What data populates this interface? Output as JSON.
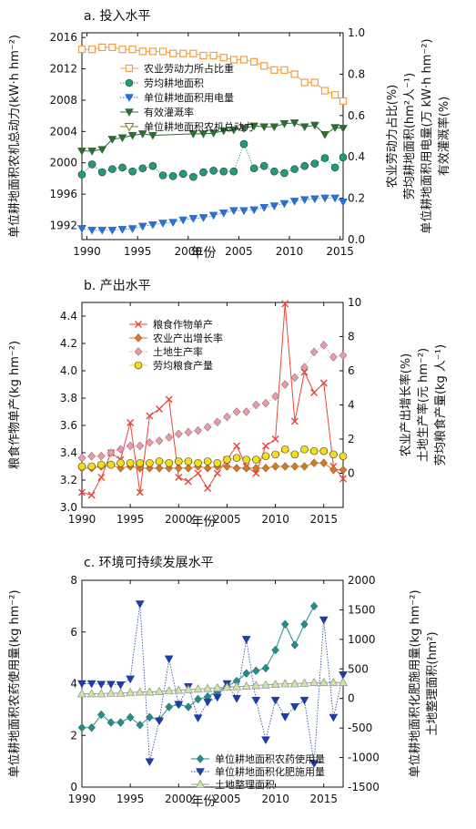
{
  "chart_data": [
    {
      "id": "a",
      "type": "line",
      "title": "a. 投入水平",
      "xlabel": "年份",
      "ylabel_left": "单位耕地面积农机总动力(kW·h hm⁻²)",
      "ylabel_right": [
        "农业劳动力占比(%)",
        "劳均耕地面积(hm²人⁻¹)",
        "单位耕地面积用电量(万 kW·h hm⁻²)",
        "有效灌溉率(%)"
      ],
      "xlim": [
        1989.5,
        2015.3
      ],
      "xticks": [
        1990,
        1995,
        2000,
        2005,
        2010,
        2015
      ],
      "ylim_left": [
        1990.2,
        2016.6
      ],
      "yticks_left": [
        1992,
        1996,
        2000,
        2004,
        2008,
        2012,
        2016
      ],
      "ylim_right": [
        0,
        1.0
      ],
      "yticks_right": [
        "0.0",
        "0.2",
        "0.4",
        "0.6",
        "0.8",
        "1.0"
      ],
      "legend_position": "upper-right",
      "series": [
        {
          "name": "农业劳动力所占比重",
          "axis": "right",
          "color": "#f0a040",
          "marker": "square-open",
          "line": "solid",
          "x": [
            1989.5,
            1990.5,
            1991.5,
            1992.5,
            1993.5,
            1994.5,
            1995.5,
            1996.5,
            1997.5,
            1998.5,
            1999.5,
            2000.5,
            2001.5,
            2002.5,
            2003.5,
            2004.5,
            2005.5,
            2006.5,
            2007.5,
            2008.5,
            2009.5,
            2010.5,
            2011.5,
            2012.5,
            2013.5,
            2014.5,
            2015.3
          ],
          "values": [
            0.92,
            0.92,
            0.93,
            0.93,
            0.92,
            0.92,
            0.91,
            0.91,
            0.91,
            0.9,
            0.9,
            0.9,
            0.89,
            0.89,
            0.88,
            0.87,
            0.87,
            0.86,
            0.84,
            0.82,
            0.82,
            0.8,
            0.76,
            0.76,
            0.72,
            0.7,
            0.67
          ]
        },
        {
          "name": "劳均耕地面积",
          "axis": "left",
          "color": "#1e9c7c",
          "marker": "circle",
          "line": "dotted",
          "x": [
            1989.5,
            1990.5,
            1991.5,
            1992.5,
            1993.5,
            1994.5,
            1995.5,
            1996.5,
            1997.5,
            1998.5,
            1999.5,
            2000.5,
            2001.5,
            2002.5,
            2003.5,
            2004.5,
            2005.5,
            2006.5,
            2007.5,
            2008.5,
            2009.5,
            2010.5,
            2011.5,
            2012.5,
            2013.5,
            2014.5,
            2015.3
          ],
          "values": [
            1998.5,
            1999.8,
            1998.8,
            1999.2,
            1999.4,
            1998.9,
            1999.3,
            1999.6,
            1998.4,
            1998.3,
            1998.6,
            1998.2,
            1998.8,
            1999.0,
            1998.9,
            1998.9,
            2002.4,
            1999.3,
            1999.6,
            1998.9,
            1998.7,
            1999.2,
            1999.6,
            1999.9,
            2000.6,
            1999.4,
            2000.7
          ]
        },
        {
          "name": "单位耕地面积用电量",
          "axis": "left",
          "color": "#2e6fcc",
          "marker": "triangle-down",
          "line": "dotted",
          "x": [
            1989.5,
            1990.5,
            1991.5,
            1992.5,
            1993.5,
            1994.5,
            1995.5,
            1996.5,
            1997.5,
            1998.5,
            1999.5,
            2000.5,
            2001.5,
            2002.5,
            2003.5,
            2004.5,
            2005.5,
            2006.5,
            2007.5,
            2008.5,
            2009.5,
            2010.5,
            2011.5,
            2012.5,
            2013.5,
            2014.5,
            2015.3
          ],
          "values": [
            1991.6,
            1991.4,
            1991.4,
            1991.4,
            1991.5,
            1991.6,
            1991.9,
            1992.1,
            1992.3,
            1992.4,
            1992.7,
            1992.9,
            1993.0,
            1993.3,
            1993.6,
            1993.9,
            1993.9,
            1994.0,
            1994.3,
            1994.5,
            1994.8,
            1995.1,
            1995.3,
            1995.4,
            1995.5,
            1995.5,
            1995.0
          ]
        },
        {
          "name": "有效灌溉率",
          "axis": "left",
          "color": "#2f6b32",
          "marker": "triangle-down",
          "line": "solid",
          "x": [
            1989.5,
            1990.5,
            1991.5,
            1992.5,
            1993.5,
            1994.5,
            1995.5,
            1996.5,
            2000.5,
            2001.5,
            2002.5,
            2003.5,
            2004.5,
            2005.5,
            2006.5,
            2007.5,
            2008.5,
            2009.5,
            2010.5,
            2011.5,
            2012.5,
            2013.5,
            2014.5,
            2015.3
          ],
          "values": [
            2001.5,
            2001.5,
            2001.7,
            2003.0,
            2003.2,
            2003.5,
            2003.7,
            2003.5,
            2003.7,
            2003.7,
            2003.8,
            2004.1,
            2004.2,
            2004.4,
            2004.7,
            2004.6,
            2004.6,
            2005.0,
            2005.1,
            2004.6,
            2004.8,
            2003.6,
            2004.5,
            2004.4
          ]
        },
        {
          "name": "单位耕地面积农机总动力",
          "axis": "left",
          "color": "#8a7a10",
          "marker": "triangle-down-open",
          "line": "solid",
          "x": [],
          "values": []
        }
      ]
    },
    {
      "id": "b",
      "type": "line",
      "title": "b. 产出水平",
      "xlabel": "年份",
      "ylabel_left": "粮食作物单产(kg hm⁻²)",
      "ylabel_right": [
        "农业产出增长率(%)",
        "土地生产率(元 hm⁻²)",
        "劳均粮食产量(kg 人⁻¹)"
      ],
      "xlim": [
        1990,
        2017
      ],
      "xticks": [
        1990,
        1995,
        2000,
        2005,
        2010,
        2015
      ],
      "ylim_left": [
        3.0,
        4.5
      ],
      "yticks_left": [
        "3.0",
        "3.2",
        "3.4",
        "3.6",
        "3.8",
        "4.0",
        "4.2",
        "4.4"
      ],
      "ylim_right": [
        -2,
        10
      ],
      "yticks_right": [
        0,
        2,
        4,
        6,
        8,
        10
      ],
      "legend_position": "upper-left",
      "series": [
        {
          "name": "粮食作物单产",
          "axis": "left",
          "color": "#e8443a",
          "marker": "x",
          "line": "solid",
          "x": [
            1990,
            1991,
            1992,
            1993,
            1994,
            1995,
            1996,
            1997,
            1998,
            1999,
            2000,
            2001,
            2002,
            2003,
            2004,
            2005,
            2006,
            2007,
            2008,
            2009,
            2010,
            2011,
            2012,
            2013,
            2014,
            2015,
            2016,
            2017
          ],
          "values": [
            3.11,
            3.09,
            3.22,
            3.4,
            3.35,
            3.62,
            3.11,
            3.67,
            3.72,
            3.79,
            3.22,
            3.19,
            3.25,
            3.14,
            3.25,
            3.35,
            3.45,
            3.3,
            3.25,
            3.45,
            3.5,
            4.49,
            3.63,
            3.99,
            3.84,
            3.91,
            3.3,
            3.21
          ]
        },
        {
          "name": "农业产出增长率",
          "axis": "right",
          "color": "#d7781f",
          "marker": "diamond",
          "line": "solid",
          "x": [
            1990,
            1991,
            1992,
            1993,
            1994,
            1995,
            1996,
            1997,
            1998,
            1999,
            2000,
            2001,
            2002,
            2003,
            2004,
            2005,
            2006,
            2007,
            2008,
            2009,
            2010,
            2011,
            2012,
            2013,
            2014,
            2015,
            2016,
            2017
          ],
          "values": [
            0.3,
            0.3,
            0.4,
            0.5,
            0.3,
            0.4,
            0.3,
            0.3,
            0.3,
            0.3,
            0.3,
            0.3,
            0.4,
            0.3,
            0.4,
            0.4,
            0.3,
            0.3,
            0.3,
            0.3,
            0.4,
            0.4,
            0.4,
            0.4,
            0.6,
            0.6,
            0.2,
            0.2
          ]
        },
        {
          "name": "土地生产率",
          "axis": "right",
          "color": "#e89aa8",
          "marker": "diamond",
          "line": "dotted",
          "x": [
            1990,
            1991,
            1992,
            1993,
            1994,
            1995,
            1996,
            1997,
            1998,
            1999,
            2000,
            2001,
            2002,
            2003,
            2004,
            2005,
            2006,
            2007,
            2008,
            2009,
            2010,
            2011,
            2012,
            2013,
            2014,
            2015,
            2016,
            2017
          ],
          "values": [
            0.9,
            1.0,
            1.0,
            1.2,
            1.4,
            1.6,
            1.6,
            1.8,
            1.9,
            2.1,
            2.3,
            2.4,
            2.5,
            2.7,
            3.0,
            3.3,
            3.6,
            3.6,
            4.0,
            4.1,
            4.5,
            5.2,
            5.6,
            6.2,
            7.1,
            7.5,
            6.8,
            6.9
          ]
        },
        {
          "name": "劳均粮食产量",
          "axis": "right",
          "color": "#f2de1a",
          "marker": "circle",
          "line": "solid",
          "x": [
            1990,
            1991,
            1992,
            1993,
            1994,
            1995,
            1996,
            1997,
            1998,
            1999,
            2000,
            2001,
            2002,
            2003,
            2004,
            2005,
            2006,
            2007,
            2008,
            2009,
            2010,
            2011,
            2012,
            2013,
            2014,
            2015,
            2016,
            2017
          ],
          "values": [
            0.4,
            0.4,
            0.5,
            0.5,
            0.6,
            0.6,
            0.6,
            0.6,
            0.7,
            0.6,
            0.7,
            0.7,
            0.6,
            0.7,
            0.6,
            0.8,
            0.9,
            0.8,
            0.8,
            1.0,
            1.1,
            1.4,
            1.1,
            1.4,
            1.3,
            1.3,
            1.1,
            1.0
          ]
        }
      ]
    },
    {
      "id": "c",
      "type": "line",
      "title": "c. 环境可持续发展水平",
      "xlabel": "年份",
      "ylabel_left": "单位耕地面积农药使用量(kg hm⁻²)",
      "ylabel_right": [
        "单位耕地面积化肥施用量(kg hm⁻²)",
        "土地整理面积(hm²)"
      ],
      "xlim": [
        1990,
        2017
      ],
      "xticks": [
        1990,
        1995,
        2000,
        2005,
        2010,
        2015
      ],
      "ylim_left": [
        0,
        8
      ],
      "yticks_left": [
        0,
        2,
        4,
        6,
        8
      ],
      "ylim_right": [
        -1500,
        2000
      ],
      "yticks_right": [
        -1500,
        -1000,
        -500,
        0,
        500,
        1000,
        1500,
        2000
      ],
      "legend_position": "lower-center",
      "series": [
        {
          "name": "单位耕地面积农药使用量",
          "axis": "left",
          "color": "#1f8f8a",
          "marker": "diamond",
          "line": "solid",
          "x": [
            1990,
            1991,
            1992,
            1993,
            1994,
            1995,
            1996,
            1997,
            1998,
            1999,
            2000,
            2001,
            2002,
            2003,
            2004,
            2005,
            2006,
            2007,
            2008,
            2009,
            2010,
            2011,
            2012,
            2013,
            2014
          ],
          "values": [
            2.3,
            2.3,
            2.8,
            2.5,
            2.5,
            2.7,
            2.4,
            2.7,
            2.6,
            3.1,
            3.2,
            3.1,
            3.4,
            3.5,
            3.7,
            3.9,
            4.1,
            4.4,
            4.5,
            4.6,
            5.3,
            6.3,
            5.5,
            6.3,
            7.0
          ]
        },
        {
          "name": "单位耕地面积化肥施用量",
          "axis": "right",
          "color": "#1f3ea3",
          "marker": "triangle-down",
          "line": "dotted",
          "x": [
            1990,
            1991,
            1992,
            1993,
            1994,
            1995,
            1996,
            1997,
            1998,
            1999,
            2000,
            2001,
            2002,
            2003,
            2004,
            2005,
            2006,
            2007,
            2008,
            2009,
            2010,
            2011,
            2012,
            2013,
            2014,
            2015,
            2016,
            2017
          ],
          "values": [
            250,
            250,
            240,
            240,
            230,
            330,
            1600,
            -1070,
            -380,
            670,
            -100,
            200,
            -330,
            -60,
            20,
            250,
            0,
            1000,
            -30,
            -700,
            -30,
            -310,
            -140,
            -30,
            -1100,
            1330,
            -320,
            400
          ]
        },
        {
          "name": "土地整理面积",
          "axis": "right",
          "color": "#9a9a9a",
          "fill": "#cde6a3",
          "marker": "triangle-up",
          "line": "solid",
          "x": [
            1990,
            1991,
            1992,
            1993,
            1994,
            1995,
            1996,
            1997,
            1998,
            1999,
            2000,
            2001,
            2002,
            2003,
            2004,
            2005,
            2006,
            2007,
            2008,
            2009,
            2010,
            2011,
            2012,
            2013,
            2014,
            2015,
            2016,
            2017
          ],
          "values": [
            80,
            80,
            80,
            90,
            90,
            100,
            110,
            110,
            120,
            130,
            140,
            150,
            160,
            170,
            180,
            190,
            200,
            210,
            220,
            230,
            240,
            250,
            250,
            260,
            270,
            270,
            270,
            270
          ]
        }
      ]
    }
  ]
}
